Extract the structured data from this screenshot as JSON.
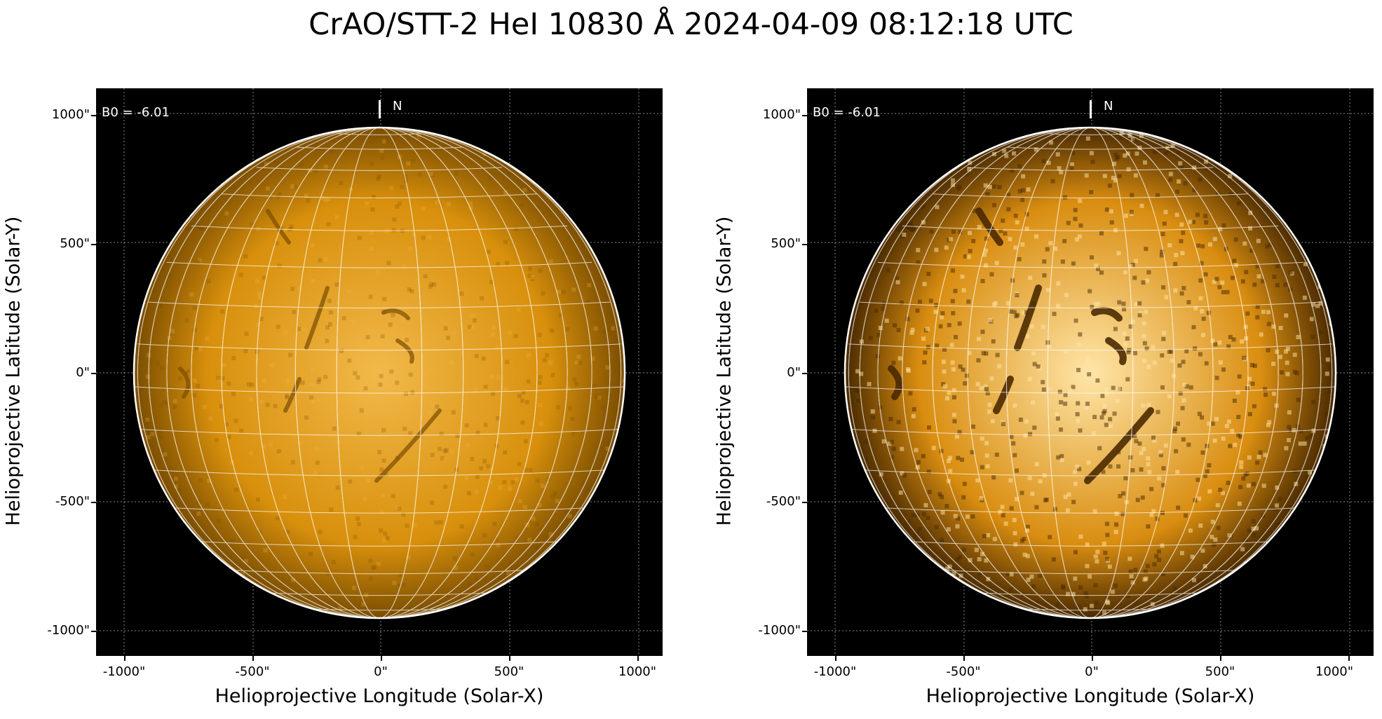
{
  "figure": {
    "title": "CrAO/STT-2 HeI 10830 Å 2024-04-09 08:12:18 UTC"
  },
  "panels": [
    {
      "id": "left",
      "b0_label": "B0 = -6.01",
      "north_label": "N",
      "xlabel": "Helioprojective Longitude (Solar-X)",
      "ylabel": "Helioprojective Latitude (Solar-Y)",
      "xticks": [
        "-1000\"",
        "-500\"",
        "0\"",
        "500\"",
        "1000\""
      ],
      "yticks": [
        "1000\"",
        "500\"",
        "0\"",
        "-500\"",
        "-1000\""
      ],
      "colormap": {
        "dark": "#7a4d00",
        "mid": "#d8900c",
        "bright": "#f2b94a"
      }
    },
    {
      "id": "right",
      "b0_label": "B0 = -6.01",
      "north_label": "N",
      "xlabel": "Helioprojective Longitude (Solar-X)",
      "ylabel": "Helioprojective Latitude (Solar-Y)",
      "xticks": [
        "-1000\"",
        "-500\"",
        "0\"",
        "500\"",
        "1000\""
      ],
      "yticks": [
        "1000\"",
        "500\"",
        "0\"",
        "-500\"",
        "-1000\""
      ],
      "colormap": {
        "dark": "#4a2a00",
        "mid": "#d98d10",
        "bright": "#ffe6a8"
      }
    }
  ],
  "colors": {
    "background": "#000000",
    "limb": "#ffffff",
    "grid": "#ffffff",
    "axis_grid": "#8a8a8a"
  }
}
